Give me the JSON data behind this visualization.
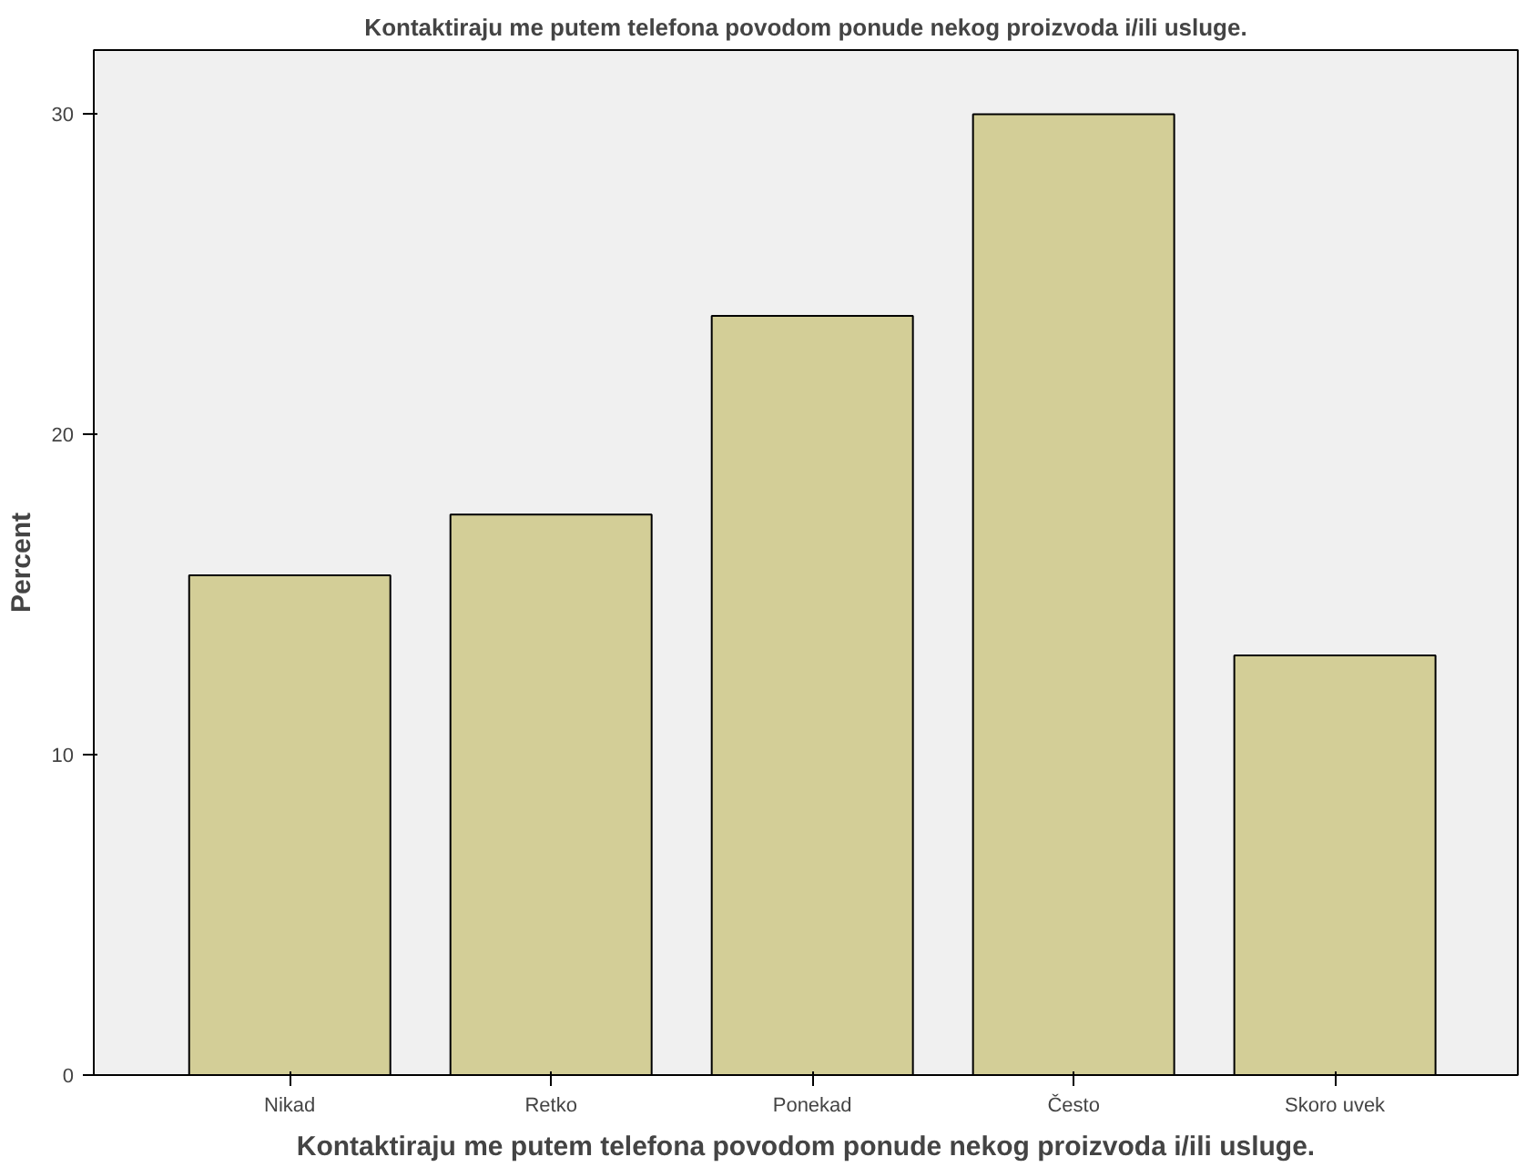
{
  "chart_data": {
    "type": "bar",
    "title": "Kontaktiraju me putem telefona povodom ponude nekog proizvoda i/ili usluge.",
    "xlabel": "Kontaktiraju me putem telefona povodom ponude nekog proizvoda i/ili usluge.",
    "ylabel": "Percent",
    "categories": [
      "Nikad",
      "Retko",
      "Ponekad",
      "Često",
      "Skoro uvek"
    ],
    "values": [
      15.6,
      17.5,
      23.7,
      30.0,
      13.1
    ],
    "color": "#d3ce97",
    "ylim": [
      0,
      32
    ],
    "yticks": [
      0,
      10,
      20,
      30
    ],
    "grid": false
  }
}
